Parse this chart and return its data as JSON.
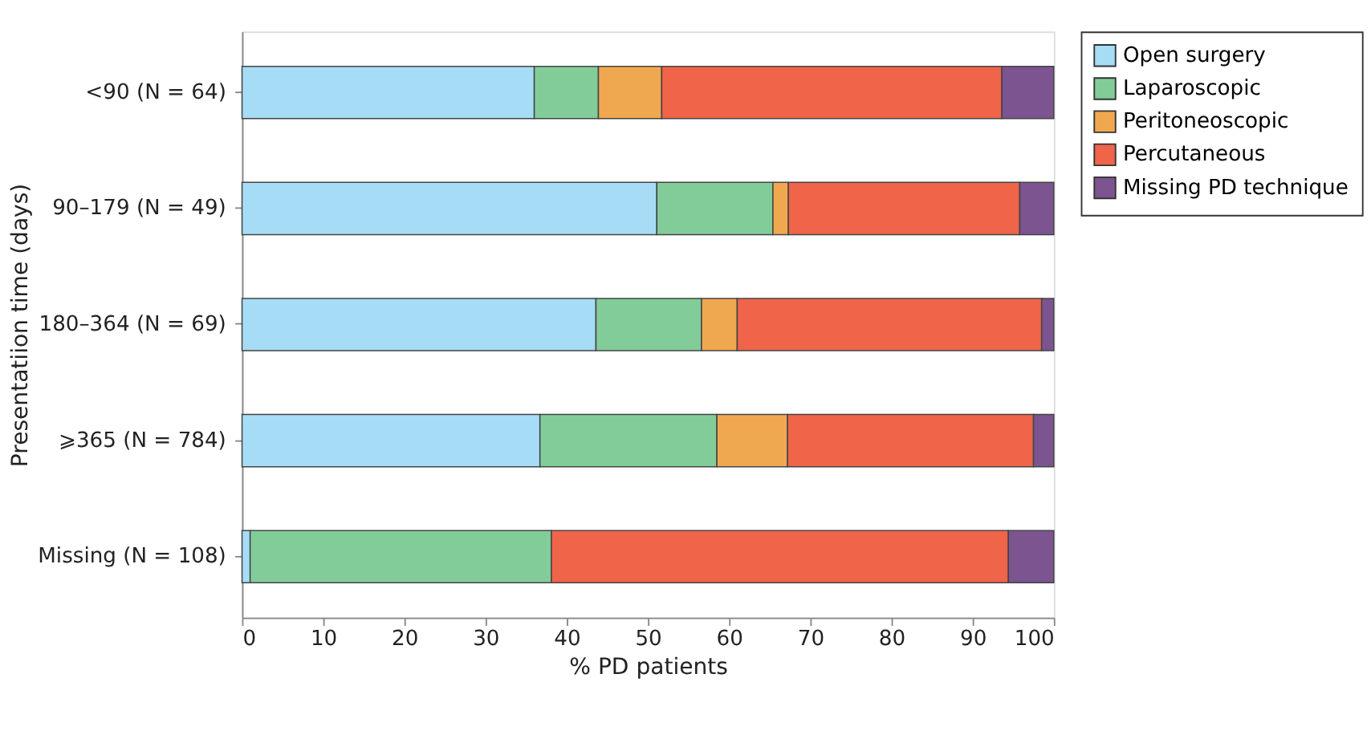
{
  "chart_data": {
    "type": "bar",
    "orientation": "horizontal",
    "stacked": true,
    "categories": [
      "<90\n(N = 64)",
      "90–179\n(N = 49)",
      "180–364\n(N = 69)",
      "⩾365\n(N = 784)",
      "Missing\n(N = 108)"
    ],
    "series": [
      {
        "name": "Open surgery",
        "color": "#a6dcf5",
        "values": [
          36.0,
          51.1,
          43.6,
          36.7,
          1.0
        ]
      },
      {
        "name": "Laparoscopic",
        "color": "#82cc9a",
        "values": [
          7.9,
          14.3,
          13.0,
          21.8,
          37.1
        ]
      },
      {
        "name": "Peritoneoscopic",
        "color": "#f0a850",
        "values": [
          7.8,
          1.9,
          4.4,
          8.7,
          0
        ]
      },
      {
        "name": "Percutaneous",
        "color": "#f0644a",
        "values": [
          41.9,
          28.5,
          37.5,
          30.3,
          56.3
        ]
      },
      {
        "name": "Missing PD technique",
        "color": "#7b5490",
        "values": [
          6.4,
          4.2,
          1.5,
          2.5,
          5.6
        ]
      }
    ],
    "xlim": [
      0,
      100
    ],
    "xticks": [
      0,
      10,
      20,
      30,
      40,
      50,
      60,
      70,
      80,
      90,
      100
    ],
    "xlabel": "% PD patients",
    "ylabel": "Presentatiion time (days)",
    "grid": false,
    "legend": "right"
  }
}
